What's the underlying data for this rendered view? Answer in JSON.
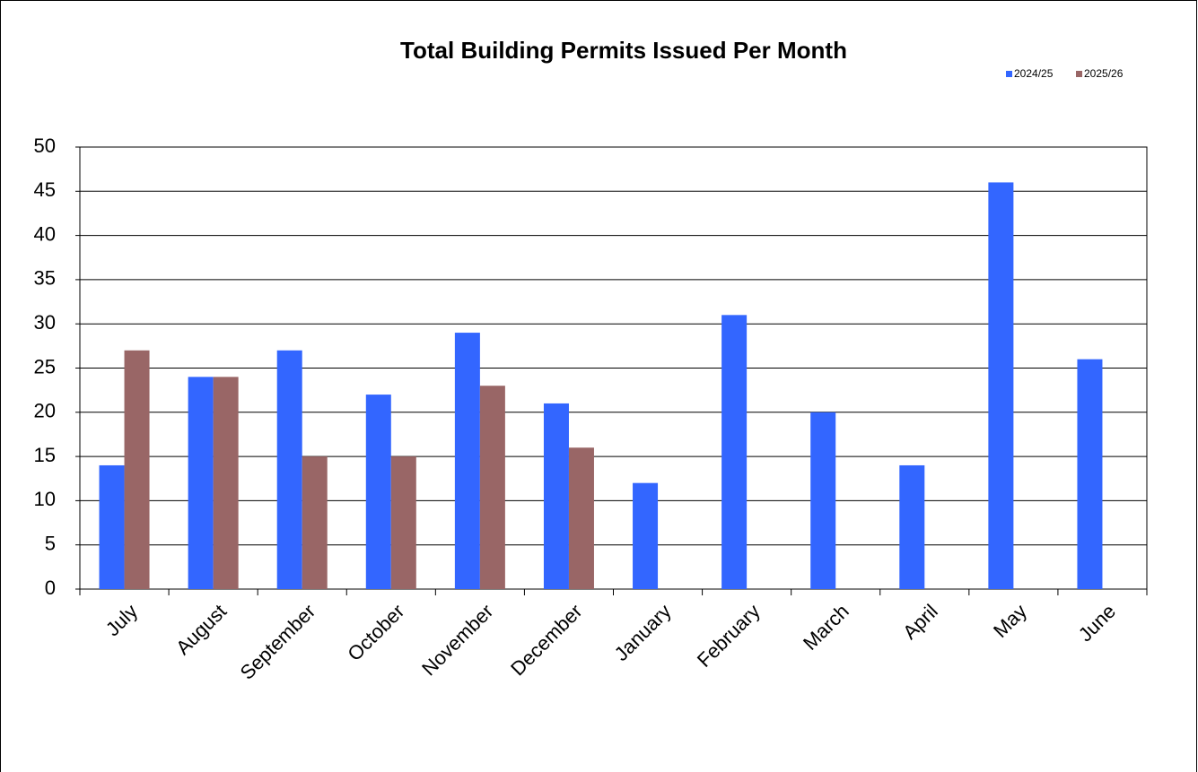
{
  "chart_data": {
    "type": "bar",
    "title": "Total Building Permits Issued Per Month",
    "categories": [
      "July",
      "August",
      "September",
      "October",
      "November",
      "December",
      "January",
      "February",
      "March",
      "April",
      "May",
      "June"
    ],
    "series": [
      {
        "name": "2024/25",
        "color": "#3366ff",
        "values": [
          14,
          24,
          27,
          22,
          29,
          21,
          12,
          31,
          20,
          14,
          46,
          26
        ]
      },
      {
        "name": "2025/26",
        "color": "#996666",
        "values": [
          27,
          24,
          15,
          15,
          23,
          16,
          null,
          null,
          null,
          null,
          null,
          null
        ]
      }
    ],
    "ylim": [
      0,
      50
    ],
    "yticks": [
      0,
      5,
      10,
      15,
      20,
      25,
      30,
      35,
      40,
      45,
      50
    ],
    "grid": true,
    "legend": "top-right"
  }
}
